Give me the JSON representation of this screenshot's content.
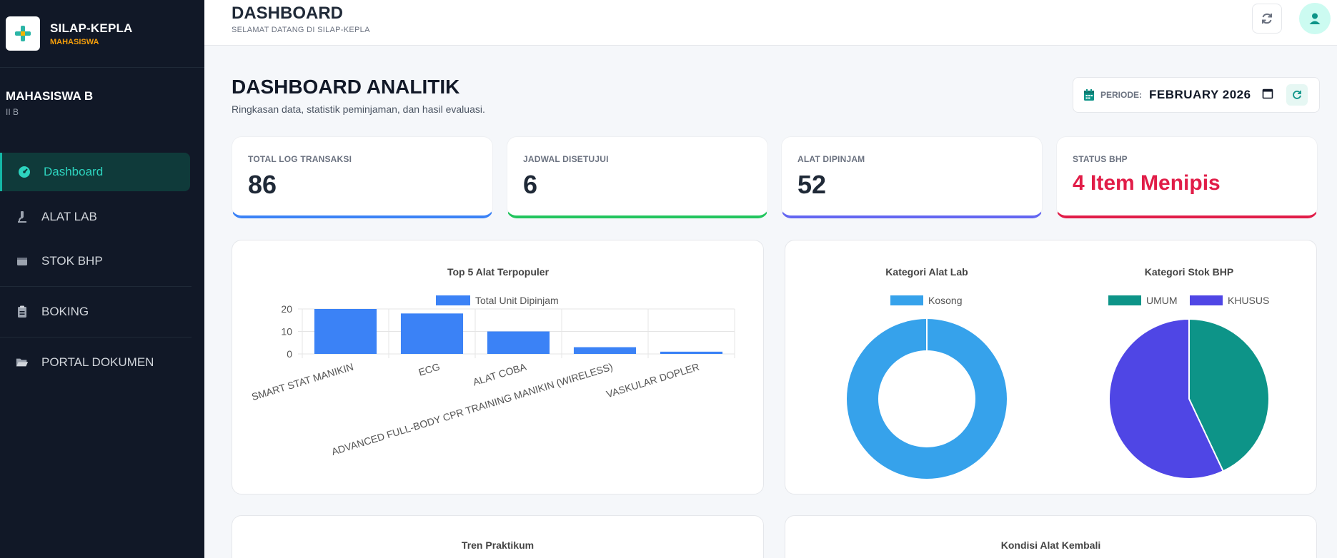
{
  "brand": {
    "name": "SILAP-KEPLA",
    "role": "MAHASISWA"
  },
  "user": {
    "name": "MAHASISWA B",
    "class": "II B"
  },
  "nav": {
    "dashboard": "Dashboard",
    "alat_lab": "ALAT LAB",
    "stok_bhp": "STOK BHP",
    "boking": "BOKING",
    "portal": "PORTAL DOKUMEN"
  },
  "header": {
    "title": "DASHBOARD",
    "subtitle": "SELAMAT DATANG DI SILAP-KEPLA"
  },
  "hero": {
    "title": "DASHBOARD ANALITIK",
    "subtitle": "Ringkasan data, statistik peminjaman, dan hasil evaluasi."
  },
  "period": {
    "label": "PERIODE:",
    "value": "FEBRUARY 2026"
  },
  "kpis": [
    {
      "label": "TOTAL LOG TRANSAKSI",
      "value": "86",
      "color": "#3b82f6"
    },
    {
      "label": "JADWAL DISETUJUI",
      "value": "6",
      "color": "#22c55e"
    },
    {
      "label": "ALAT DIPINJAM",
      "value": "52",
      "color": "#6366f1"
    },
    {
      "label": "STATUS BHP",
      "value": "4 Item Menipis",
      "color": "#e11d48"
    }
  ],
  "colors": {
    "bar": "#3b82f6",
    "umum": "#0d9488",
    "khusus": "#4f46e5",
    "kosong": "#36a2eb"
  },
  "chart_data": [
    {
      "type": "bar",
      "title": "Top 5 Alat Terpopuler",
      "categories": [
        "SMART STAT MANIKIN",
        "ECG",
        "ALAT COBA",
        "ADVANCED FULL-BODY CPR TRAINING MANIKIN (WIRELESS)",
        "VASKULAR DOPLER"
      ],
      "series": [
        {
          "name": "Total Unit Dipinjam",
          "values": [
            20,
            18,
            10,
            3,
            1
          ]
        }
      ],
      "yticks": [
        "0",
        "10",
        "20"
      ],
      "ylim": [
        0,
        20
      ]
    },
    {
      "type": "pie",
      "title": "Kategori Alat Lab",
      "labels": [
        "Kosong"
      ],
      "values": [
        1
      ],
      "donut": true
    },
    {
      "type": "pie",
      "title": "Kategori Stok BHP",
      "labels": [
        "UMUM",
        "KHUSUS"
      ],
      "values": [
        43,
        57
      ]
    }
  ],
  "bottom": {
    "left_title": "Tren Praktikum",
    "right_title": "Kondisi Alat Kembali"
  }
}
